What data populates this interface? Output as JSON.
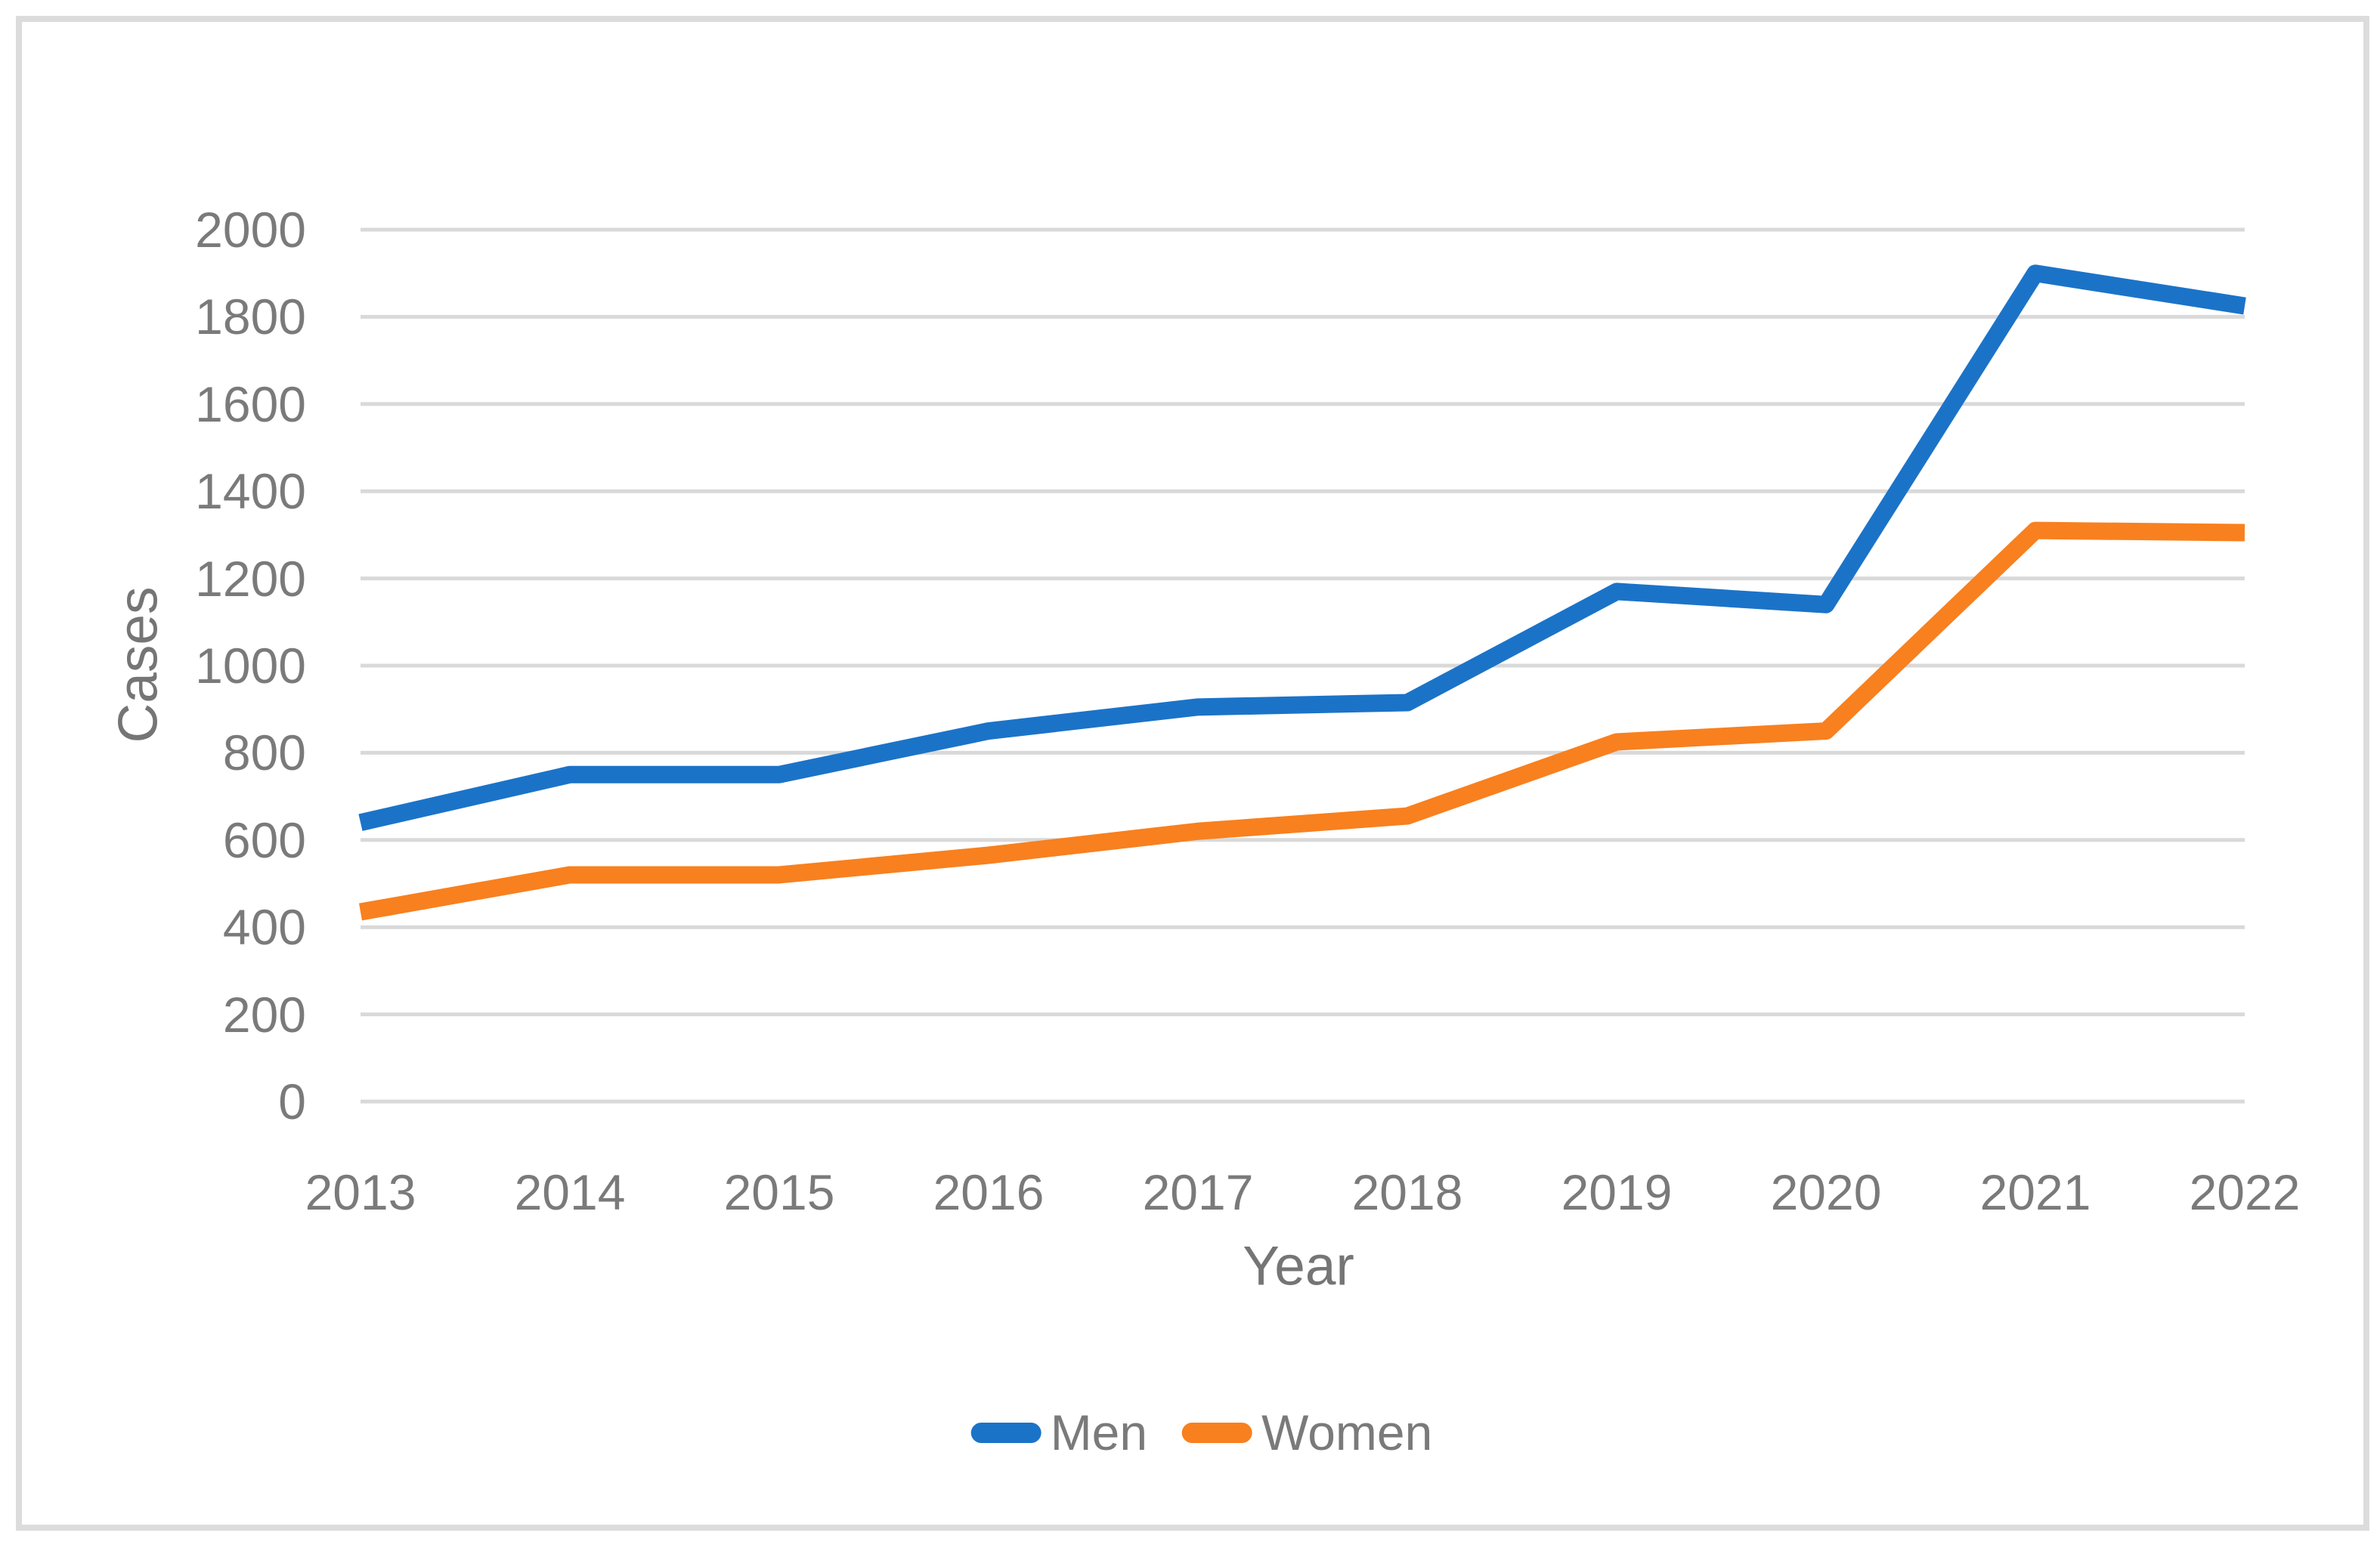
{
  "figure": {
    "description": "Line chart of cases per year for men and women"
  },
  "chart_data": {
    "type": "line",
    "title": "",
    "categories": [
      "2013",
      "2014",
      "2015",
      "2016",
      "2017",
      "2018",
      "2019",
      "2020",
      "2021",
      "2022"
    ],
    "series": [
      {
        "name": "Men",
        "color": "#1b73c8",
        "values": [
          640,
          750,
          750,
          850,
          905,
          915,
          1170,
          1140,
          1900,
          1825
        ]
      },
      {
        "name": "Women",
        "color": "#f8801f",
        "values": [
          435,
          520,
          520,
          565,
          620,
          655,
          825,
          850,
          1310,
          1305
        ]
      }
    ],
    "xlabel": "Year",
    "ylabel": "Cases",
    "ylim": [
      0,
      2000
    ],
    "ytick_step": 200,
    "ytick_labels": [
      "0",
      "200",
      "400",
      "600",
      "800",
      "1000",
      "1200",
      "1400",
      "1600",
      "1800",
      "2000"
    ],
    "grid": "horizontal",
    "gridline_color": "#d9d9d9",
    "axis_label_color": "#7a7a7a",
    "line_width": 23,
    "legend_position": "bottom"
  }
}
